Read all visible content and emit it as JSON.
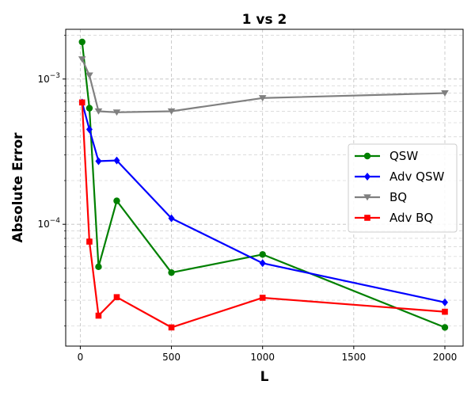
{
  "chart_data": {
    "type": "line",
    "title": "1 vs 2",
    "xlabel": "L",
    "ylabel": "Absolute Error",
    "x_scale": "linear",
    "y_scale": "log",
    "xlim": [
      -80,
      2100
    ],
    "ylim": [
      1.45e-05,
      0.0022
    ],
    "x_ticks": [
      0,
      500,
      1000,
      1500,
      2000
    ],
    "x_tick_labels": [
      "0",
      "500",
      "1000",
      "1500",
      "2000"
    ],
    "y_ticks": [
      0.0001,
      0.001
    ],
    "y_tick_labels": [
      "10^-4",
      "10^-3"
    ],
    "grid": true,
    "legend_position": "center-right",
    "series": [
      {
        "name": "QSW",
        "color": "#008000",
        "marker": "circle",
        "x": [
          10,
          50,
          100,
          200,
          500,
          1000,
          2000
        ],
        "y": [
          0.0018,
          0.00063,
          5.1e-05,
          0.000145,
          4.65e-05,
          6.2e-05,
          1.95e-05
        ]
      },
      {
        "name": "Adv QSW",
        "color": "#0000ff",
        "marker": "diamond",
        "x": [
          10,
          50,
          100,
          200,
          500,
          1000,
          2000
        ],
        "y": [
          0.00069,
          0.00045,
          0.000272,
          0.000275,
          0.00011,
          5.4e-05,
          2.9e-05
        ]
      },
      {
        "name": "BQ",
        "color": "#808080",
        "marker": "triangle-down",
        "x": [
          10,
          50,
          100,
          200,
          500,
          1000,
          2000
        ],
        "y": [
          0.00137,
          0.00106,
          0.0006,
          0.00059,
          0.0006,
          0.00074,
          0.0008
        ]
      },
      {
        "name": "Adv BQ",
        "color": "#ff0000",
        "marker": "square",
        "x": [
          10,
          50,
          100,
          200,
          500,
          1000,
          2000
        ],
        "y": [
          0.00069,
          7.6e-05,
          2.35e-05,
          3.15e-05,
          1.95e-05,
          3.12e-05,
          2.5e-05
        ]
      }
    ]
  }
}
